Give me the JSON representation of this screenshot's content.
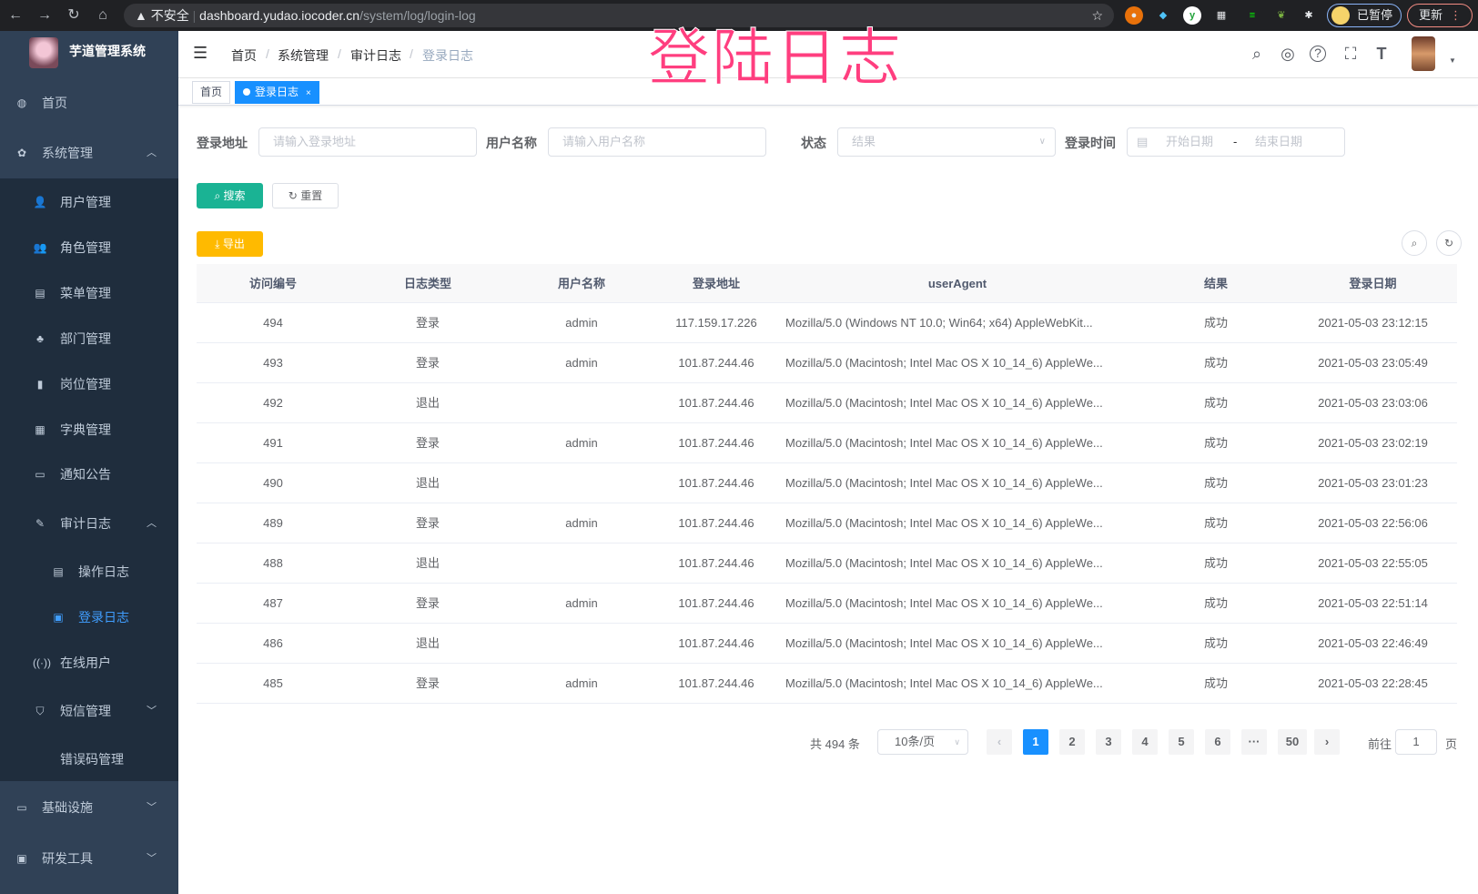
{
  "browser": {
    "security": "不安全",
    "url_host": "dashboard.yudao.iocoder.cn",
    "url_path": "/system/log/login-log",
    "profile": "已暂停",
    "update": "更新"
  },
  "overlay_title": "登陆日志",
  "sidebar": {
    "title": "芋道管理系统",
    "items": [
      {
        "label": "首页",
        "icon": "dashboard-icon",
        "level": 0
      },
      {
        "label": "系统管理",
        "icon": "gear-icon",
        "level": 0,
        "chevron": "up"
      },
      {
        "label": "用户管理",
        "icon": "user-icon",
        "level": 1
      },
      {
        "label": "角色管理",
        "icon": "peoples-icon",
        "level": 1
      },
      {
        "label": "菜单管理",
        "icon": "tree-table-icon",
        "level": 1
      },
      {
        "label": "部门管理",
        "icon": "tree-icon",
        "level": 1
      },
      {
        "label": "岗位管理",
        "icon": "post-icon",
        "level": 1
      },
      {
        "label": "字典管理",
        "icon": "dict-icon",
        "level": 1
      },
      {
        "label": "通知公告",
        "icon": "message-icon",
        "level": 1
      },
      {
        "label": "审计日志",
        "icon": "log-icon",
        "level": 1,
        "chevron": "up"
      },
      {
        "label": "操作日志",
        "icon": "form-icon",
        "level": 2
      },
      {
        "label": "登录日志",
        "icon": "logininfor-icon",
        "level": 2,
        "active": true
      },
      {
        "label": "在线用户",
        "icon": "online-icon",
        "level": 1
      },
      {
        "label": "短信管理",
        "icon": "shield-icon",
        "level": 1,
        "chevron": "down"
      },
      {
        "label": "错误码管理",
        "icon": "code-icon",
        "level": 1
      },
      {
        "label": "基础设施",
        "icon": "monitor-icon",
        "level": 0,
        "chevron": "down"
      },
      {
        "label": "研发工具",
        "icon": "tool-icon",
        "level": 0,
        "chevron": "down"
      }
    ]
  },
  "breadcrumb": [
    "首页",
    "系统管理",
    "审计日志",
    "登录日志"
  ],
  "tags": [
    {
      "label": "首页"
    },
    {
      "label": "登录日志",
      "active": true
    }
  ],
  "filters": {
    "address_label": "登录地址",
    "address_placeholder": "请输入登录地址",
    "username_label": "用户名称",
    "username_placeholder": "请输入用户名称",
    "status_label": "状态",
    "status_placeholder": "结果",
    "time_label": "登录时间",
    "start_placeholder": "开始日期",
    "range_sep": "-",
    "end_placeholder": "结束日期"
  },
  "buttons": {
    "search": "搜索",
    "reset": "重置",
    "export": "导出"
  },
  "table": {
    "columns": [
      "访问编号",
      "日志类型",
      "用户名称",
      "登录地址",
      "userAgent",
      "结果",
      "登录日期"
    ],
    "rows": [
      [
        "494",
        "登录",
        "admin",
        "117.159.17.226",
        "Mozilla/5.0 (Windows NT 10.0; Win64; x64) AppleWebKit...",
        "成功",
        "2021-05-03 23:12:15"
      ],
      [
        "493",
        "登录",
        "admin",
        "101.87.244.46",
        "Mozilla/5.0 (Macintosh; Intel Mac OS X 10_14_6) AppleWe...",
        "成功",
        "2021-05-03 23:05:49"
      ],
      [
        "492",
        "退出",
        "",
        "101.87.244.46",
        "Mozilla/5.0 (Macintosh; Intel Mac OS X 10_14_6) AppleWe...",
        "成功",
        "2021-05-03 23:03:06"
      ],
      [
        "491",
        "登录",
        "admin",
        "101.87.244.46",
        "Mozilla/5.0 (Macintosh; Intel Mac OS X 10_14_6) AppleWe...",
        "成功",
        "2021-05-03 23:02:19"
      ],
      [
        "490",
        "退出",
        "",
        "101.87.244.46",
        "Mozilla/5.0 (Macintosh; Intel Mac OS X 10_14_6) AppleWe...",
        "成功",
        "2021-05-03 23:01:23"
      ],
      [
        "489",
        "登录",
        "admin",
        "101.87.244.46",
        "Mozilla/5.0 (Macintosh; Intel Mac OS X 10_14_6) AppleWe...",
        "成功",
        "2021-05-03 22:56:06"
      ],
      [
        "488",
        "退出",
        "",
        "101.87.244.46",
        "Mozilla/5.0 (Macintosh; Intel Mac OS X 10_14_6) AppleWe...",
        "成功",
        "2021-05-03 22:55:05"
      ],
      [
        "487",
        "登录",
        "admin",
        "101.87.244.46",
        "Mozilla/5.0 (Macintosh; Intel Mac OS X 10_14_6) AppleWe...",
        "成功",
        "2021-05-03 22:51:14"
      ],
      [
        "486",
        "退出",
        "",
        "101.87.244.46",
        "Mozilla/5.0 (Macintosh; Intel Mac OS X 10_14_6) AppleWe...",
        "成功",
        "2021-05-03 22:46:49"
      ],
      [
        "485",
        "登录",
        "admin",
        "101.87.244.46",
        "Mozilla/5.0 (Macintosh; Intel Mac OS X 10_14_6) AppleWe...",
        "成功",
        "2021-05-03 22:28:45"
      ]
    ]
  },
  "pagination": {
    "total": "共 494 条",
    "page_size": "10条/页",
    "pages": [
      "1",
      "2",
      "3",
      "4",
      "5",
      "6",
      "···",
      "50"
    ],
    "current": "1",
    "goto_label": "前往",
    "goto_value": "1",
    "goto_suffix": "页"
  },
  "colors": {
    "sidebar_bg": "#304156",
    "submenu_bg": "#1f2d3d",
    "active": "#409eff",
    "primary": "#1890ff",
    "search_btn": "#1ab394",
    "export_btn": "#ffba00",
    "overlay_title": "#ff3e7f"
  }
}
